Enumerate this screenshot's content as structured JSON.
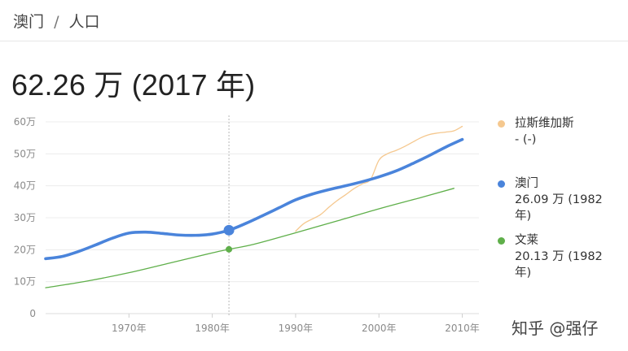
{
  "breadcrumb": {
    "place": "澳门",
    "separator": "/",
    "topic": "人口"
  },
  "headline": "62.26 万 (2017 年)",
  "legend": [
    {
      "name": "拉斯维加斯",
      "value": "- (-)",
      "color": "#f5c88f"
    },
    {
      "name": "澳门",
      "value": "26.09 万 (1982 年)",
      "color": "#4a84db"
    },
    {
      "name": "文莱",
      "value": "20.13 万 (1982 年)",
      "color": "#5faf4a"
    }
  ],
  "watermark": "知乎 @强仔",
  "chart_data": {
    "type": "line",
    "y_ticks": [
      0,
      10,
      20,
      30,
      40,
      50,
      60
    ],
    "y_tick_labels": [
      "0",
      "10万",
      "20万",
      "30万",
      "40万",
      "50万",
      "60万"
    ],
    "x_ticks": [
      1970,
      1980,
      1990,
      2000,
      2010
    ],
    "x_tick_labels": [
      "1970年",
      "1980年",
      "1990年",
      "2000年",
      "2010年"
    ],
    "xlim": [
      1960,
      2012
    ],
    "ylim": [
      0,
      60
    ],
    "hover_year": 1982,
    "series": [
      {
        "name": "澳门",
        "color": "#4a84db",
        "x": [
          1960,
          1962,
          1964,
          1966,
          1968,
          1970,
          1972,
          1974,
          1976,
          1978,
          1980,
          1982,
          1984,
          1986,
          1988,
          1990,
          1992,
          1994,
          1996,
          1998,
          2000,
          2002,
          2004,
          2006,
          2008,
          2010
        ],
        "values": [
          17.2,
          17.9,
          19.5,
          21.5,
          23.6,
          25.2,
          25.5,
          25.1,
          24.6,
          24.5,
          24.9,
          26.1,
          28.2,
          30.6,
          33.1,
          35.6,
          37.4,
          38.8,
          40.0,
          41.3,
          42.8,
          44.6,
          46.9,
          49.4,
          52.1,
          54.5
        ]
      },
      {
        "name": "文莱",
        "color": "#5faf4a",
        "x": [
          1960,
          1965,
          1970,
          1975,
          1980,
          1982,
          1985,
          1990,
          1995,
          2000,
          2005,
          2009
        ],
        "values": [
          8.1,
          10.2,
          12.8,
          15.9,
          19.0,
          20.13,
          21.7,
          25.3,
          29.0,
          32.8,
          36.3,
          39.2
        ]
      },
      {
        "name": "拉斯维加斯",
        "color": "#f5c88f",
        "x": [
          1990,
          1991,
          1992,
          1993,
          1994,
          1995,
          1996,
          1997,
          1998,
          1999,
          2000,
          2001,
          2002,
          2003,
          2004,
          2005,
          2006,
          2007,
          2008,
          2009,
          2010
        ],
        "values": [
          25.8,
          28.2,
          29.6,
          31.0,
          33.3,
          35.4,
          37.2,
          39.1,
          40.6,
          42.0,
          48.0,
          50.0,
          51.0,
          52.2,
          53.6,
          55.0,
          56.0,
          56.5,
          56.8,
          57.2,
          58.6
        ]
      }
    ]
  }
}
